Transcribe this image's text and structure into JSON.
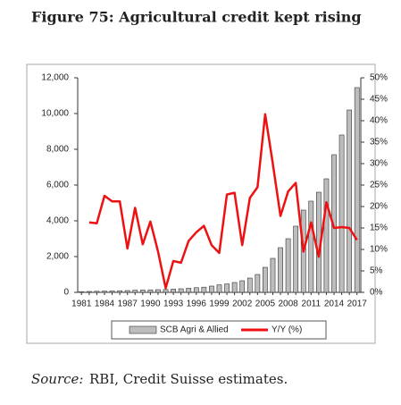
{
  "chart_data": {
    "type": "bar_line",
    "title": "Figure 75: Agricultural credit kept rising",
    "source_label": "Source:",
    "source_text": "RBI, Credit Suisse estimates.",
    "categories": [
      "1981",
      null,
      null,
      "1984",
      null,
      null,
      "1987",
      null,
      null,
      "1990",
      null,
      null,
      "1993",
      null,
      null,
      "1996",
      null,
      null,
      "1999",
      null,
      null,
      "2002",
      null,
      null,
      "2005",
      null,
      null,
      "2008",
      null,
      null,
      "2011",
      null,
      null,
      "2014",
      null,
      null,
      "2017"
    ],
    "series": [
      {
        "name": "SCB Agri & Allied",
        "color": "#bdbdbd",
        "axis": "y",
        "values": [
          40,
          50,
          60,
          70,
          80,
          90,
          100,
          120,
          130,
          140,
          150,
          160,
          180,
          200,
          230,
          260,
          290,
          350,
          420,
          470,
          550,
          650,
          800,
          1000,
          1400,
          1900,
          2500,
          3000,
          3700,
          4600,
          5100,
          5600,
          6350,
          7700,
          8800,
          10200,
          11450
        ]
      },
      {
        "name": "Y/Y (%)",
        "color": "#ee1111",
        "axis": "y2",
        "values": [
          null,
          16.3,
          16.1,
          22.5,
          21.2,
          21.2,
          10.2,
          19.7,
          11.2,
          16.5,
          9.5,
          1,
          7.3,
          6.9,
          12,
          14,
          15.5,
          11,
          9.2,
          22.8,
          23.2,
          11,
          22,
          24.5,
          41.5,
          30,
          17.8,
          23.5,
          25.5,
          9.5,
          16.3,
          8.3,
          21,
          15,
          15.2,
          15,
          12.2
        ]
      }
    ],
    "ylim": [
      0,
      12000
    ],
    "yticks": [
      0,
      {
        "value": 2000,
        "label": "2,000"
      },
      {
        "value": 4000,
        "label": "4,000"
      },
      {
        "value": 6000,
        "label": "6,000"
      },
      {
        "value": 8000,
        "label": "8,000"
      },
      {
        "value": 10000,
        "label": "10,000"
      },
      {
        "value": 12000,
        "label": "12,000"
      }
    ],
    "y2lim": [
      0,
      50
    ],
    "y2ticks": [
      {
        "value": 0,
        "label": "0%"
      },
      {
        "value": 5,
        "label": "5%"
      },
      {
        "value": 10,
        "label": "10%"
      },
      {
        "value": 15,
        "label": "15%"
      },
      {
        "value": 20,
        "label": "20%"
      },
      {
        "value": 25,
        "label": "25%"
      },
      {
        "value": 30,
        "label": "30%"
      },
      {
        "value": 35,
        "label": "35%"
      },
      {
        "value": 40,
        "label": "40%"
      },
      {
        "value": 45,
        "label": "45%"
      },
      {
        "value": 50,
        "label": "50%"
      }
    ],
    "legend": "bottom"
  }
}
